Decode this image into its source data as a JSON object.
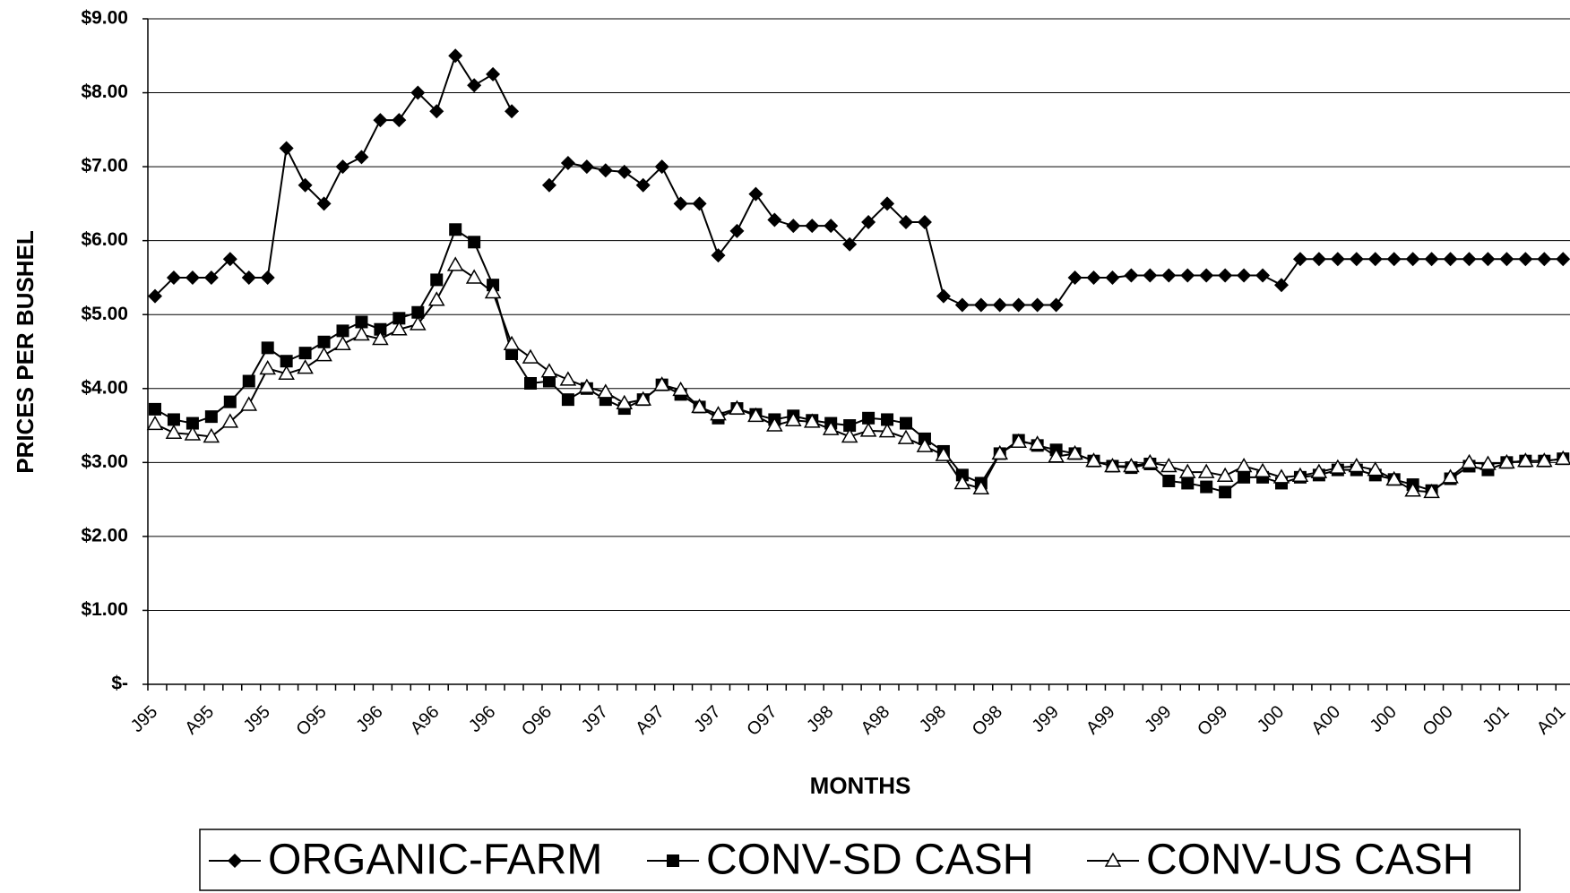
{
  "chart_data": {
    "type": "line",
    "y_label": "PRICES PER BUSHEL",
    "x_label": "MONTHS",
    "categories": [
      "J95",
      null,
      null,
      "A95",
      null,
      null,
      "J95",
      null,
      null,
      "O95",
      null,
      null,
      "J96",
      null,
      null,
      "A96",
      null,
      null,
      "J96",
      null,
      null,
      "O96",
      null,
      null,
      "J97",
      null,
      null,
      "A97",
      null,
      null,
      "J97",
      null,
      null,
      "O97",
      null,
      null,
      "J98",
      null,
      null,
      "A98",
      null,
      null,
      "J98",
      null,
      null,
      "O98",
      null,
      null,
      "J99",
      null,
      null,
      "A99",
      null,
      null,
      "J99",
      null,
      null,
      "O99",
      null,
      null,
      "J00",
      null,
      null,
      "A00",
      null,
      null,
      "J00",
      null,
      null,
      "O00",
      null,
      null,
      "J01",
      null,
      null,
      "A01"
    ],
    "series": [
      {
        "name": "ORGANIC-FARM",
        "color": "#000000",
        "marker": "diamond",
        "values": [
          5.25,
          5.5,
          5.5,
          5.5,
          5.75,
          5.5,
          5.5,
          7.25,
          6.75,
          6.5,
          7.0,
          7.13,
          7.63,
          7.63,
          8.0,
          7.75,
          8.5,
          8.1,
          8.25,
          7.75,
          null,
          6.75,
          7.05,
          7.0,
          6.95,
          6.93,
          6.75,
          7.0,
          6.5,
          6.5,
          5.8,
          6.13,
          6.63,
          6.28,
          6.2,
          6.2,
          6.2,
          5.95,
          6.25,
          6.5,
          6.25,
          6.25,
          5.25,
          5.13,
          5.13,
          5.13,
          5.13,
          5.13,
          5.13,
          5.5,
          5.5,
          5.5,
          5.53,
          5.53,
          5.53,
          5.53,
          5.53,
          5.53,
          5.53,
          5.53,
          5.4,
          5.75,
          5.75,
          5.75,
          5.75,
          5.75,
          5.75,
          5.75,
          5.75,
          5.75,
          5.75,
          5.75,
          5.75,
          5.75,
          5.75,
          5.75
        ]
      },
      {
        "name": "CONV-SD CASH",
        "color": "#000000",
        "marker": "square",
        "values": [
          3.72,
          3.58,
          3.53,
          3.62,
          3.82,
          4.1,
          4.55,
          4.37,
          4.48,
          4.63,
          4.78,
          4.9,
          4.8,
          4.95,
          5.03,
          5.47,
          6.15,
          5.98,
          5.4,
          4.47,
          4.07,
          4.1,
          3.85,
          4.0,
          3.85,
          3.73,
          3.85,
          4.05,
          3.92,
          3.75,
          3.6,
          3.73,
          3.65,
          3.58,
          3.63,
          3.57,
          3.53,
          3.5,
          3.6,
          3.58,
          3.53,
          3.32,
          3.15,
          2.83,
          2.72,
          3.12,
          3.3,
          3.23,
          3.17,
          3.12,
          3.02,
          2.95,
          2.93,
          2.98,
          2.75,
          2.72,
          2.67,
          2.6,
          2.8,
          2.8,
          2.72,
          2.8,
          2.83,
          2.9,
          2.9,
          2.83,
          2.77,
          2.7,
          2.62,
          2.78,
          2.95,
          2.9,
          3.0,
          3.02,
          3.02,
          3.05
        ]
      },
      {
        "name": "CONV-US CASH",
        "color": "#000000",
        "marker": "triangle",
        "values": [
          3.52,
          3.4,
          3.38,
          3.35,
          3.55,
          3.78,
          4.27,
          4.2,
          4.28,
          4.45,
          4.6,
          4.73,
          4.67,
          4.8,
          4.87,
          5.2,
          5.67,
          5.5,
          5.3,
          4.6,
          4.42,
          4.23,
          4.12,
          4.02,
          3.95,
          3.8,
          3.85,
          4.05,
          3.98,
          3.75,
          3.65,
          3.73,
          3.63,
          3.5,
          3.57,
          3.55,
          3.45,
          3.35,
          3.43,
          3.42,
          3.33,
          3.22,
          3.1,
          2.72,
          2.65,
          3.12,
          3.28,
          3.25,
          3.08,
          3.12,
          3.02,
          2.95,
          2.95,
          3.0,
          2.95,
          2.87,
          2.87,
          2.82,
          2.95,
          2.88,
          2.8,
          2.82,
          2.87,
          2.93,
          2.95,
          2.9,
          2.77,
          2.62,
          2.6,
          2.8,
          3.0,
          2.98,
          3.0,
          3.02,
          3.02,
          3.05
        ]
      }
    ],
    "ylim": [
      0,
      9
    ],
    "yticks": [
      {
        "value": 0,
        "label": "$-"
      },
      {
        "value": 1,
        "label": "$1.00"
      },
      {
        "value": 2,
        "label": "$2.00"
      },
      {
        "value": 3,
        "label": "$3.00"
      },
      {
        "value": 4,
        "label": "$4.00"
      },
      {
        "value": 5,
        "label": "$5.00"
      },
      {
        "value": 6,
        "label": "$6.00"
      },
      {
        "value": 7,
        "label": "$7.00"
      },
      {
        "value": 8,
        "label": "$8.00"
      },
      {
        "value": 9,
        "label": "$9.00"
      }
    ],
    "grid": true,
    "legend": "bottom"
  }
}
